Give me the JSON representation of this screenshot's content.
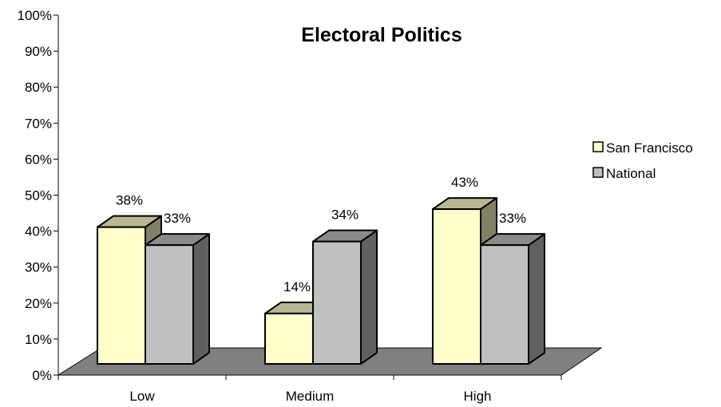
{
  "chart_data": {
    "type": "bar",
    "title": "Electoral Politics",
    "xlabel": "",
    "ylabel": "",
    "categories": [
      "Low",
      "Medium",
      "High"
    ],
    "series": [
      {
        "name": "San Francisco",
        "values": [
          38,
          14,
          43
        ],
        "labels": [
          "38%",
          "14%",
          "43%"
        ],
        "color": "#FFFFCC"
      },
      {
        "name": "National",
        "values": [
          33,
          34,
          33
        ],
        "labels": [
          "33%",
          "34%",
          "33%"
        ],
        "color": "#C0C0C0"
      }
    ],
    "ylim": [
      0,
      100
    ],
    "yticks": [
      "0%",
      "10%",
      "20%",
      "30%",
      "40%",
      "50%",
      "60%",
      "70%",
      "80%",
      "90%",
      "100%"
    ],
    "legend_position": "right",
    "grid": false,
    "style": "3d-clustered-column",
    "floor_color": "#808080"
  }
}
